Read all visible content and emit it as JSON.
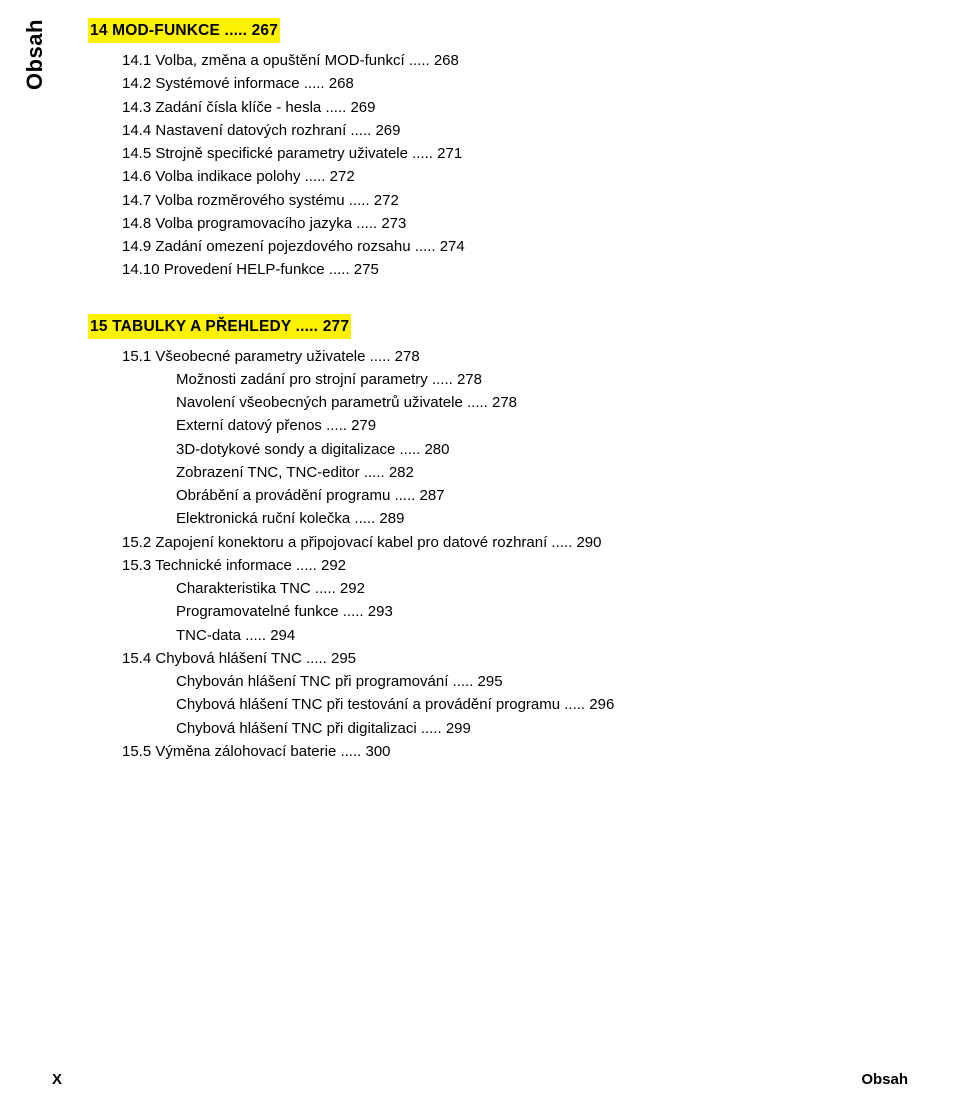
{
  "side_label": "Obsah",
  "footer": {
    "left": "X",
    "right": "Obsah"
  },
  "ch14": {
    "heading": "14 MOD-FUNKCE ..... 267",
    "entries": [
      "14.1 Volba, změna a opuštění MOD-funkcí ..... 268",
      "14.2 Systémové informace ..... 268",
      "14.3 Zadání čísla klíče - hesla ..... 269",
      "14.4 Nastavení datových rozhraní ..... 269",
      "14.5 Strojně specifické parametry uživatele ..... 271",
      "14.6 Volba indikace polohy ..... 272",
      "14.7 Volba rozměrového systému ..... 272",
      "14.8 Volba programovacího jazyka ..... 273",
      "14.9 Zadání omezení pojezdového rozsahu  ..... 274",
      "14.10 Provedení HELP-funkce ..... 275"
    ]
  },
  "ch15": {
    "heading": "15 TABULKY A PŘEHLEDY ..... 277",
    "s1": {
      "head": "15.1 Všeobecné parametry uživatele ..... 278",
      "sub": [
        "Možnosti zadání pro strojní parametry ..... 278",
        "Navolení všeobecných parametrů uživatele ..... 278",
        "Externí datový přenos ..... 279",
        "3D-dotykové sondy a digitalizace ..... 280",
        "Zobrazení TNC, TNC-editor ..... 282",
        "Obrábění a provádění programu ..... 287",
        "Elektronická ruční kolečka ..... 289"
      ]
    },
    "s2": "15.2 Zapojení konektoru a připojovací kabel pro datové rozhraní ..... 290",
    "s3": {
      "head": "15.3 Technické informace ..... 292",
      "sub": [
        "Charakteristika TNC ..... 292",
        "Programovatelné funkce ..... 293",
        "TNC-data ..... 294"
      ]
    },
    "s4": {
      "head": "15.4 Chybová hlášení TNC ..... 295",
      "sub": [
        "Chybován hlášení TNC při programování ..... 295",
        "Chybová hlášení TNC při testování a provádění programu ..... 296",
        "Chybová hlášení TNC při digitalizaci ..... 299"
      ]
    },
    "s5": "15.5 Výměna zálohovací baterie ..... 300"
  }
}
